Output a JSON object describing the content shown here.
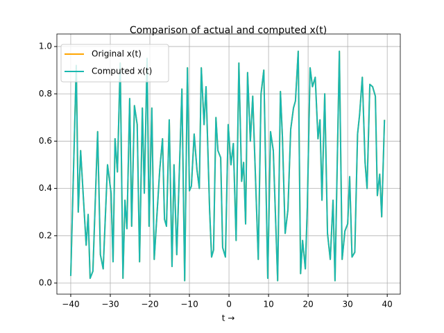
{
  "chart_data": {
    "type": "line",
    "title": "Comparison of actual and computed x(t)",
    "xlabel": "t →",
    "x": [
      -40.0,
      -38.6,
      -38.1,
      -37.5,
      -36.1,
      -35.6,
      -35.1,
      -34.4,
      -33.2,
      -32.5,
      -31.8,
      -30.7,
      -29.8,
      -29.3,
      -28.8,
      -28.2,
      -27.5,
      -26.8,
      -26.3,
      -25.8,
      -25.1,
      -24.6,
      -23.9,
      -23.2,
      -22.6,
      -21.9,
      -21.4,
      -20.7,
      -20.2,
      -19.5,
      -18.9,
      -18.2,
      -17.5,
      -16.8,
      -16.3,
      -15.8,
      -15.1,
      -14.4,
      -13.9,
      -13.2,
      -11.9,
      -11.2,
      -10.5,
      -10.0,
      -9.5,
      -8.8,
      -8.1,
      -7.5,
      -7.0,
      -6.3,
      -5.8,
      -4.9,
      -4.4,
      -3.9,
      -3.3,
      -2.8,
      -2.1,
      -1.6,
      -0.9,
      -0.2,
      0.5,
      1.1,
      1.8,
      2.5,
      3.2,
      3.7,
      4.2,
      4.7,
      5.4,
      6.0,
      7.4,
      8.1,
      8.8,
      9.8,
      10.5,
      11.2,
      12.3,
      13.0,
      13.5,
      14.2,
      14.9,
      15.6,
      16.3,
      16.8,
      17.5,
      18.1,
      18.6,
      19.3,
      19.8,
      20.5,
      21.1,
      21.8,
      22.5,
      23.0,
      23.5,
      24.2,
      24.9,
      25.6,
      26.3,
      26.8,
      27.9,
      28.6,
      29.3,
      30.0,
      30.5,
      31.1,
      31.8,
      32.5,
      33.0,
      33.7,
      34.4,
      34.9,
      35.6,
      36.3,
      37.0,
      37.5,
      38.1,
      38.6,
      39.3
    ],
    "series": [
      {
        "name": "Original x(t)",
        "color": "#ffa500",
        "values": [
          0.03,
          0.92,
          0.3,
          0.56,
          0.16,
          0.29,
          0.02,
          0.05,
          0.64,
          0.12,
          0.06,
          0.5,
          0.38,
          0.09,
          0.61,
          0.47,
          0.93,
          0.02,
          0.35,
          0.23,
          0.78,
          0.24,
          0.75,
          0.67,
          0.09,
          0.74,
          0.38,
          0.95,
          0.24,
          0.74,
          0.1,
          0.29,
          0.48,
          0.61,
          0.27,
          0.24,
          0.69,
          0.07,
          0.5,
          0.12,
          0.82,
          0.01,
          0.91,
          0.39,
          0.41,
          0.63,
          0.48,
          0.4,
          0.91,
          0.67,
          0.83,
          0.31,
          0.11,
          0.14,
          0.7,
          0.56,
          0.53,
          0.15,
          0.11,
          0.67,
          0.5,
          0.59,
          0.18,
          0.93,
          0.43,
          0.51,
          0.25,
          0.89,
          0.6,
          0.79,
          0.1,
          0.8,
          0.9,
          0.02,
          0.64,
          0.56,
          0.01,
          0.81,
          0.62,
          0.21,
          0.31,
          0.65,
          0.74,
          0.77,
          0.98,
          0.04,
          0.18,
          0.06,
          0.32,
          0.91,
          0.83,
          0.87,
          0.61,
          0.69,
          0.35,
          0.8,
          0.21,
          0.1,
          0.35,
          0.01,
          0.98,
          0.1,
          0.22,
          0.25,
          0.45,
          0.11,
          0.13,
          0.63,
          0.71,
          0.87,
          0.51,
          0.4,
          0.84,
          0.83,
          0.79,
          0.37,
          0.46,
          0.28,
          0.69
        ]
      },
      {
        "name": "Computed x(t)",
        "color": "#1ab8b0",
        "values": [
          0.03,
          0.92,
          0.3,
          0.56,
          0.16,
          0.29,
          0.02,
          0.05,
          0.64,
          0.12,
          0.06,
          0.5,
          0.38,
          0.09,
          0.61,
          0.47,
          0.93,
          0.02,
          0.35,
          0.23,
          0.78,
          0.24,
          0.75,
          0.67,
          0.09,
          0.74,
          0.38,
          0.95,
          0.24,
          0.74,
          0.1,
          0.29,
          0.48,
          0.61,
          0.27,
          0.24,
          0.69,
          0.07,
          0.5,
          0.12,
          0.82,
          0.01,
          0.91,
          0.39,
          0.41,
          0.63,
          0.48,
          0.4,
          0.91,
          0.67,
          0.83,
          0.31,
          0.11,
          0.14,
          0.7,
          0.56,
          0.53,
          0.15,
          0.11,
          0.67,
          0.5,
          0.59,
          0.18,
          0.93,
          0.43,
          0.51,
          0.25,
          0.89,
          0.6,
          0.79,
          0.1,
          0.8,
          0.9,
          0.02,
          0.64,
          0.56,
          0.01,
          0.81,
          0.62,
          0.21,
          0.31,
          0.65,
          0.74,
          0.77,
          0.98,
          0.04,
          0.18,
          0.06,
          0.32,
          0.91,
          0.83,
          0.87,
          0.61,
          0.69,
          0.35,
          0.8,
          0.21,
          0.1,
          0.35,
          0.01,
          0.98,
          0.1,
          0.22,
          0.25,
          0.45,
          0.11,
          0.13,
          0.63,
          0.71,
          0.87,
          0.51,
          0.4,
          0.84,
          0.83,
          0.79,
          0.37,
          0.46,
          0.28,
          0.69
        ]
      }
    ],
    "xlim": [
      -43.5,
      43.3
    ],
    "ylim": [
      -0.047,
      1.053
    ],
    "xticks": [
      {
        "value": -40,
        "label": "−40"
      },
      {
        "value": -30,
        "label": "−30"
      },
      {
        "value": -20,
        "label": "−20"
      },
      {
        "value": -10,
        "label": "−10"
      },
      0,
      10,
      20,
      30,
      40
    ],
    "yticks": [
      {
        "value": 0,
        "label": "0.0"
      },
      0.2,
      0.4,
      0.6,
      0.8,
      {
        "value": 1,
        "label": "1.0"
      }
    ],
    "grid": true,
    "legend": "upper-left"
  }
}
